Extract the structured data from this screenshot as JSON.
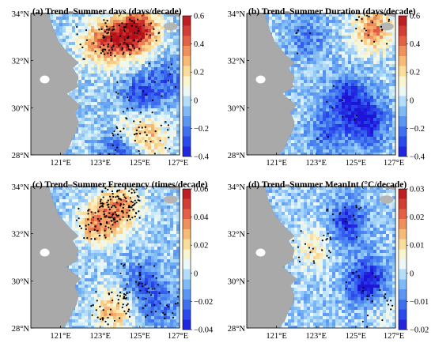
{
  "chart_data": [
    {
      "type": "heatmap",
      "title": "(a) Trend–Summer days (days/decade)",
      "x_ticks": [
        "121°E",
        "123°E",
        "125°E",
        "127°E"
      ],
      "y_ticks": [
        "28°N",
        "30°N",
        "32°N",
        "34°N"
      ],
      "xlim": [
        119.5,
        127.0
      ],
      "ylim": [
        28.0,
        34.0
      ],
      "colorbar": {
        "min": -0.4,
        "max": 0.6,
        "ticks": [
          "0.6",
          "0.4",
          "0.2",
          "0",
          "−0.2",
          "−0.4"
        ]
      },
      "regions": [
        {
          "lon": 124.0,
          "lat": 33.0,
          "value": 0.45
        },
        {
          "lon": 125.0,
          "lat": 33.4,
          "value": 0.5
        },
        {
          "lon": 122.8,
          "lat": 32.8,
          "value": 0.35
        },
        {
          "lon": 124.5,
          "lat": 29.3,
          "value": 0.2
        },
        {
          "lon": 125.5,
          "lat": 28.8,
          "value": 0.25
        },
        {
          "lon": 124.8,
          "lat": 30.5,
          "value": -0.25
        },
        {
          "lon": 126.2,
          "lat": 31.2,
          "value": -0.2
        },
        {
          "lon": 124.0,
          "lat": 28.2,
          "value": -0.25
        }
      ],
      "significant_points_count": 180
    },
    {
      "type": "heatmap",
      "title": "(b) Trend–Summer Duration (days/decade)",
      "x_ticks": [
        "121°E",
        "123°E",
        "125°E",
        "127°E"
      ],
      "y_ticks": [
        "28°N",
        "30°N",
        "32°N",
        "34°N"
      ],
      "xlim": [
        119.5,
        127.0
      ],
      "ylim": [
        28.0,
        34.0
      ],
      "colorbar": {
        "min": -0.4,
        "max": 0.6,
        "ticks": [
          "0.6",
          "0.4",
          "0.2",
          "0",
          "−0.2",
          "−0.4"
        ]
      },
      "regions": [
        {
          "lon": 125.8,
          "lat": 33.4,
          "value": 0.4
        },
        {
          "lon": 124.5,
          "lat": 30.5,
          "value": -0.3
        },
        {
          "lon": 125.5,
          "lat": 29.5,
          "value": -0.35
        },
        {
          "lon": 123.5,
          "lat": 29.0,
          "value": -0.2
        },
        {
          "lon": 122.5,
          "lat": 33.0,
          "value": -0.15
        }
      ],
      "significant_points_count": 35
    },
    {
      "type": "heatmap",
      "title": "(c) Trend–Summer Frequency (times/decade)",
      "x_ticks": [
        "121°E",
        "123°E",
        "125°E",
        "127°E"
      ],
      "y_ticks": [
        "28°N",
        "30°N",
        "32°N",
        "34°N"
      ],
      "xlim": [
        119.5,
        127.0
      ],
      "ylim": [
        28.0,
        34.0
      ],
      "colorbar": {
        "min": -0.04,
        "max": 0.06,
        "ticks": [
          "0.06",
          "0.04",
          "0.02",
          "0",
          "−0.02",
          "−0.04"
        ]
      },
      "regions": [
        {
          "lon": 124.0,
          "lat": 33.2,
          "value": 0.035
        },
        {
          "lon": 122.8,
          "lat": 32.5,
          "value": 0.04
        },
        {
          "lon": 123.5,
          "lat": 28.8,
          "value": 0.03
        },
        {
          "lon": 125.0,
          "lat": 30.0,
          "value": -0.02
        },
        {
          "lon": 126.0,
          "lat": 29.0,
          "value": -0.015
        }
      ],
      "significant_points_count": 260
    },
    {
      "type": "heatmap",
      "title": "(d) Trend–Summer MeanInt (°C/decade)",
      "x_ticks": [
        "121°E",
        "123°E",
        "125°E",
        "127°E"
      ],
      "y_ticks": [
        "28°N",
        "30°N",
        "32°N",
        "34°N"
      ],
      "xlim": [
        119.5,
        127.0
      ],
      "ylim": [
        28.0,
        34.0
      ],
      "colorbar": {
        "min": -0.02,
        "max": 0.03,
        "ticks": [
          "0.03",
          "0.02",
          "0.01",
          "0",
          "−0.01",
          "−0.02"
        ]
      },
      "regions": [
        {
          "lon": 124.5,
          "lat": 32.5,
          "value": -0.015
        },
        {
          "lon": 125.5,
          "lat": 30.0,
          "value": -0.02
        },
        {
          "lon": 122.8,
          "lat": 31.5,
          "value": 0.01
        },
        {
          "lon": 126.3,
          "lat": 28.8,
          "value": 0.005
        }
      ],
      "significant_points_count": 70
    }
  ]
}
